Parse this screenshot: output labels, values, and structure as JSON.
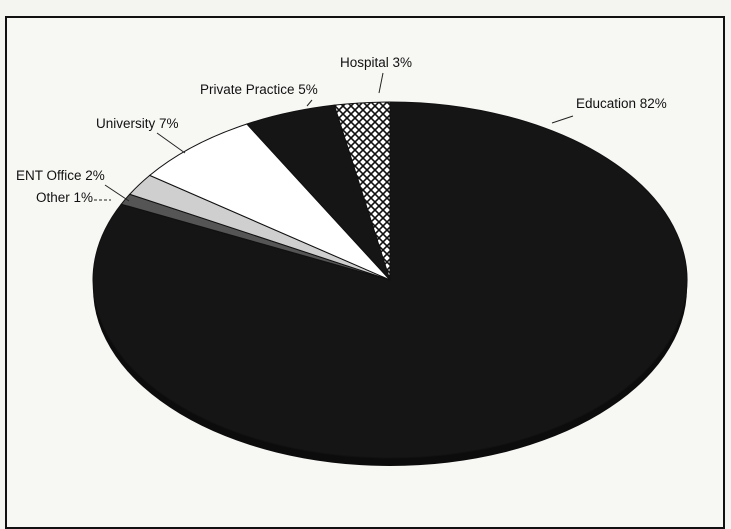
{
  "chart_data": {
    "type": "pie",
    "style": "3d-tilted",
    "slices": [
      {
        "label": "Education 82%",
        "category": "Education",
        "value": 82,
        "color": "#151515",
        "pattern": "solid"
      },
      {
        "label": "Other 1%",
        "category": "Other",
        "value": 1,
        "color": "#555555",
        "pattern": "dark-gray"
      },
      {
        "label": "ENT Office 2%",
        "category": "ENT Office",
        "value": 2,
        "color": "#cfcfcf",
        "pattern": "light-gray"
      },
      {
        "label": "University 7%",
        "category": "University",
        "value": 7,
        "color": "#ffffff",
        "pattern": "white"
      },
      {
        "label": "Private Practice 5%",
        "category": "Private Practice",
        "value": 5,
        "color": "#151515",
        "pattern": "solid"
      },
      {
        "label": "Hospital 3%",
        "category": "Hospital",
        "value": 3,
        "color": "#ffffff",
        "pattern": "crosshatch"
      }
    ],
    "legend": "none"
  }
}
